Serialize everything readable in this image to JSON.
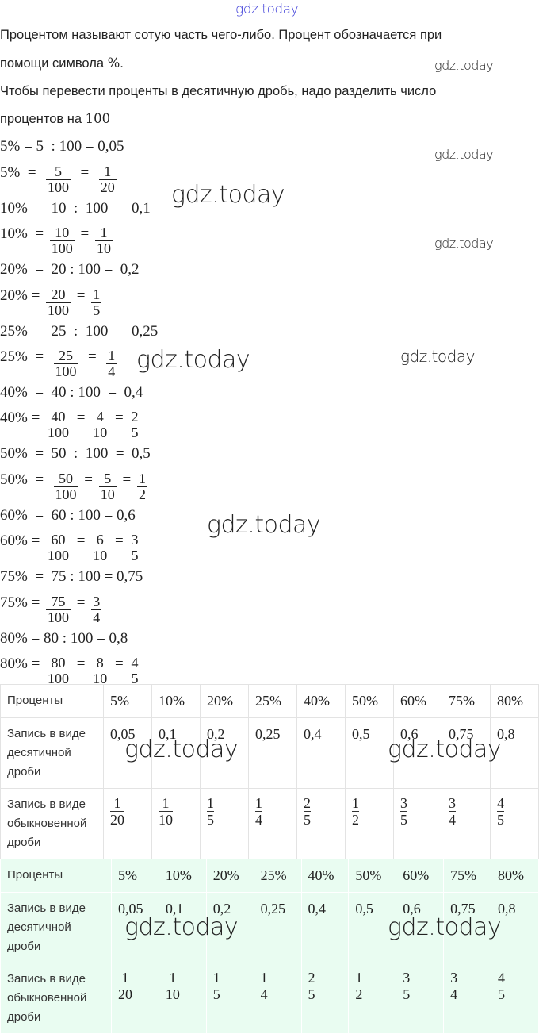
{
  "watermark": "gdz.today",
  "intro": {
    "p1_line1": "Процентом называют сотую часть чего-либо. Процент обозначается при",
    "p1_line2_text": "помощи символа ",
    "p1_line2_math": "%",
    "p1_line2_end": ".",
    "p2_line1": "Чтобы перевести проценты в десятичную дробь, надо разделить число",
    "p2_line2_text": "процентов на ",
    "p2_line2_math": "100"
  },
  "math_lines": [
    [
      "5% = 5  : 100 = 0,05"
    ],
    [
      "5%  =  ",
      {
        "n": "5",
        "d": "100"
      },
      "  =  ",
      {
        "n": "1",
        "d": "20"
      }
    ],
    [
      "10%  =  10  :  100  =  0,1"
    ],
    [
      "10%  = ",
      {
        "n": "10",
        "d": "100"
      },
      " = ",
      {
        "n": "1",
        "d": "10"
      }
    ],
    [
      "20%  =  20 : 100 =  0,2"
    ],
    [
      "20% = ",
      {
        "n": "20",
        "d": "100"
      },
      " = ",
      {
        "n": "1",
        "d": "5"
      }
    ],
    [
      "25%  =  25  :  100  =  0,25"
    ],
    [
      "25%  =  ",
      {
        "n": "25",
        "d": "100"
      },
      "  =  ",
      {
        "n": "1",
        "d": "4"
      }
    ],
    [
      "40%  =  40 : 100  =  0,4"
    ],
    [
      "40% = ",
      {
        "n": "40",
        "d": "100"
      },
      " = ",
      {
        "n": "4",
        "d": "10"
      },
      " = ",
      {
        "n": "2",
        "d": "5"
      }
    ],
    [
      "50%  =  50  :  100  =  0,5"
    ],
    [
      "50%  =  ",
      {
        "n": "50",
        "d": "100"
      },
      " = ",
      {
        "n": "5",
        "d": "10"
      },
      " = ",
      {
        "n": "1",
        "d": "2"
      }
    ],
    [
      "60%  =  60 : 100 = 0,6"
    ],
    [
      "60% = ",
      {
        "n": "60",
        "d": "100"
      },
      " = ",
      {
        "n": "6",
        "d": "10"
      },
      " = ",
      {
        "n": "3",
        "d": "5"
      }
    ],
    [
      "75%  =  75 : 100 = 0,75"
    ],
    [
      "75% = ",
      {
        "n": "75",
        "d": "100"
      },
      " = ",
      {
        "n": "3",
        "d": "4"
      }
    ],
    [
      "80% = 80 : 100 = 0,8"
    ],
    [
      "80% = ",
      {
        "n": "80",
        "d": "100"
      },
      " = ",
      {
        "n": "8",
        "d": "10"
      },
      " = ",
      {
        "n": "4",
        "d": "5"
      }
    ]
  ],
  "table": {
    "row_headers": [
      "Проценты",
      "Запись в виде десятичной дроби",
      "Запись в виде обыкновенной дроби"
    ],
    "percents": [
      "5%",
      "10%",
      "20%",
      "25%",
      "40%",
      "50%",
      "60%",
      "75%",
      "80%"
    ],
    "decimals": [
      "0,05",
      "0,1",
      "0,2",
      "0,25",
      "0,4",
      "0,5",
      "0,6",
      "0,75",
      "0,8"
    ],
    "fractions": [
      {
        "n": "1",
        "d": "20"
      },
      {
        "n": "1",
        "d": "10"
      },
      {
        "n": "1",
        "d": "5"
      },
      {
        "n": "1",
        "d": "4"
      },
      {
        "n": "2",
        "d": "5"
      },
      {
        "n": "1",
        "d": "2"
      },
      {
        "n": "3",
        "d": "5"
      },
      {
        "n": "3",
        "d": "4"
      },
      {
        "n": "4",
        "d": "5"
      }
    ]
  },
  "colors": {
    "watermark_top": "#3a3ad8",
    "table2_bg": "#e9fcf1"
  }
}
